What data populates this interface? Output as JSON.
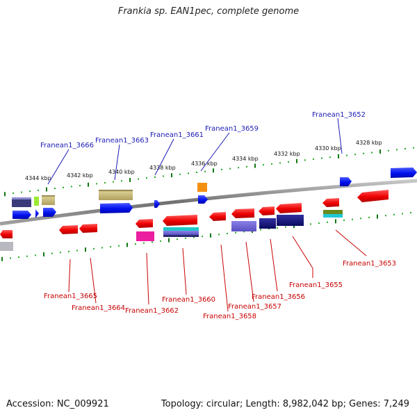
{
  "title": "Frankia sp. EAN1pec, complete genome",
  "footer": {
    "accession": "Accession: NC_009921",
    "summary": "Topology: circular; Length: 8,982,042 bp; Genes: 7,249"
  },
  "colors": {
    "forward_label": "#1a1ab4",
    "reverse_label": "#c80000",
    "ruler_dot": "#22aa22",
    "ruler_tick": "#117711",
    "backbone": "#808080"
  },
  "ruler_labels": [
    "4344 kbp",
    "4342 kbp",
    "4340 kbp",
    "4338 kbp",
    "4336 kbp",
    "4334 kbp",
    "4332 kbp",
    "4330 kbp",
    "4328 kbp"
  ],
  "gene_labels_top": [
    "Franean1_3666",
    "Franean1_3663",
    "Franean1_3661",
    "Franean1_3659",
    "Franean1_3652"
  ],
  "gene_labels_bottom": [
    "Franean1_3665",
    "Franean1_3664",
    "Franean1_3662",
    "Franean1_3660",
    "Franean1_3658",
    "Franean1_3657",
    "Franean1_3656",
    "Franean1_3655",
    "Franean1_3653"
  ]
}
